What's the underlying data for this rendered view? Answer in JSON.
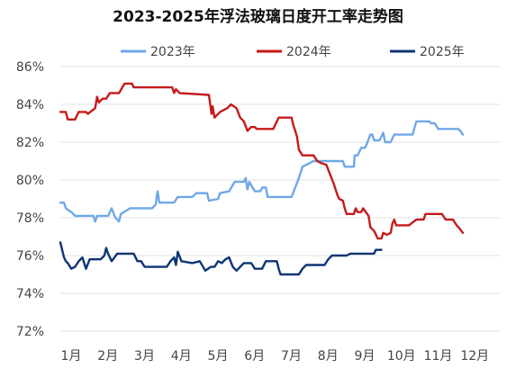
{
  "chart_data": {
    "type": "line",
    "title": "2023-2025年浮法玻璃日度开工率走势图",
    "xlabel": "",
    "ylabel": "",
    "x_ticks": [
      "1月",
      "2月",
      "3月",
      "4月",
      "5月",
      "6月",
      "7月",
      "8月",
      "9月",
      "10月",
      "11月",
      "12月"
    ],
    "x_range": [
      0,
      12
    ],
    "y_ticks": [
      "72%",
      "74%",
      "76%",
      "78%",
      "80%",
      "82%",
      "84%",
      "86%"
    ],
    "ylim": [
      72,
      86
    ],
    "grid": "horizontal",
    "legend_position": "top",
    "series": [
      {
        "name": "2023年",
        "color": "#6fa8e8",
        "points": [
          [
            0,
            78.8
          ],
          [
            0.1,
            78.8
          ],
          [
            0.15,
            78.5
          ],
          [
            0.3,
            78.3
          ],
          [
            0.4,
            78.1
          ],
          [
            0.9,
            78.1
          ],
          [
            0.95,
            77.8
          ],
          [
            1.0,
            78.1
          ],
          [
            1.3,
            78.1
          ],
          [
            1.4,
            78.5
          ],
          [
            1.5,
            78.0
          ],
          [
            1.6,
            77.8
          ],
          [
            1.65,
            78.2
          ],
          [
            1.9,
            78.5
          ],
          [
            2.5,
            78.5
          ],
          [
            2.6,
            78.7
          ],
          [
            2.65,
            79.4
          ],
          [
            2.7,
            78.8
          ],
          [
            3.1,
            78.8
          ],
          [
            3.2,
            79.1
          ],
          [
            3.6,
            79.1
          ],
          [
            3.7,
            79.3
          ],
          [
            4.0,
            79.3
          ],
          [
            4.05,
            78.9
          ],
          [
            4.3,
            79.0
          ],
          [
            4.35,
            79.3
          ],
          [
            4.6,
            79.4
          ],
          [
            4.75,
            79.9
          ],
          [
            5.0,
            79.9
          ],
          [
            5.05,
            80.1
          ],
          [
            5.1,
            79.5
          ],
          [
            5.15,
            79.9
          ],
          [
            5.3,
            79.4
          ],
          [
            5.45,
            79.4
          ],
          [
            5.5,
            79.6
          ],
          [
            5.6,
            79.6
          ],
          [
            5.65,
            79.1
          ],
          [
            6.3,
            79.1
          ],
          [
            6.4,
            79.6
          ],
          [
            6.5,
            80.1
          ],
          [
            6.6,
            80.7
          ],
          [
            6.9,
            81.0
          ],
          [
            7.7,
            81.0
          ],
          [
            7.75,
            80.7
          ],
          [
            8.0,
            80.7
          ],
          [
            8.02,
            81.3
          ],
          [
            8.1,
            81.3
          ],
          [
            8.2,
            81.7
          ],
          [
            8.3,
            81.7
          ],
          [
            8.35,
            81.9
          ],
          [
            8.45,
            82.4
          ],
          [
            8.5,
            82.4
          ],
          [
            8.55,
            82.1
          ],
          [
            8.7,
            82.1
          ],
          [
            8.8,
            82.5
          ],
          [
            8.85,
            82.0
          ],
          [
            9.0,
            82.0
          ],
          [
            9.1,
            82.4
          ],
          [
            9.6,
            82.4
          ],
          [
            9.7,
            83.1
          ],
          [
            10.05,
            83.1
          ],
          [
            10.1,
            83.0
          ],
          [
            10.2,
            83.0
          ],
          [
            10.3,
            82.7
          ],
          [
            10.85,
            82.7
          ],
          [
            10.9,
            82.6
          ],
          [
            10.97,
            82.4
          ]
        ]
      },
      {
        "name": "2024年",
        "color": "#c41a1a",
        "points": [
          [
            0,
            83.6
          ],
          [
            0.15,
            83.6
          ],
          [
            0.2,
            83.2
          ],
          [
            0.4,
            83.2
          ],
          [
            0.5,
            83.6
          ],
          [
            0.7,
            83.6
          ],
          [
            0.75,
            83.5
          ],
          [
            0.95,
            83.8
          ],
          [
            1.0,
            84.4
          ],
          [
            1.05,
            84.1
          ],
          [
            1.15,
            84.3
          ],
          [
            1.25,
            84.3
          ],
          [
            1.35,
            84.6
          ],
          [
            1.6,
            84.6
          ],
          [
            1.75,
            85.1
          ],
          [
            1.95,
            85.1
          ],
          [
            2.0,
            84.9
          ],
          [
            3.05,
            84.9
          ],
          [
            3.1,
            84.6
          ],
          [
            3.15,
            84.8
          ],
          [
            3.25,
            84.6
          ],
          [
            4.05,
            84.5
          ],
          [
            4.12,
            83.5
          ],
          [
            4.15,
            83.9
          ],
          [
            4.2,
            83.3
          ],
          [
            4.35,
            83.6
          ],
          [
            4.55,
            83.8
          ],
          [
            4.65,
            84.0
          ],
          [
            4.8,
            83.8
          ],
          [
            4.9,
            83.3
          ],
          [
            5.0,
            83.1
          ],
          [
            5.1,
            82.6
          ],
          [
            5.2,
            82.8
          ],
          [
            5.3,
            82.8
          ],
          [
            5.35,
            82.7
          ],
          [
            5.8,
            82.7
          ],
          [
            5.95,
            83.3
          ],
          [
            6.3,
            83.3
          ],
          [
            6.35,
            82.9
          ],
          [
            6.45,
            82.3
          ],
          [
            6.5,
            81.6
          ],
          [
            6.6,
            81.3
          ],
          [
            6.9,
            81.3
          ],
          [
            7.0,
            81.0
          ],
          [
            7.1,
            80.9
          ],
          [
            7.25,
            80.8
          ],
          [
            7.35,
            80.3
          ],
          [
            7.45,
            79.8
          ],
          [
            7.55,
            79.2
          ],
          [
            7.6,
            79.0
          ],
          [
            7.7,
            78.9
          ],
          [
            7.75,
            78.5
          ],
          [
            7.8,
            78.2
          ],
          [
            8.0,
            78.2
          ],
          [
            8.05,
            78.5
          ],
          [
            8.1,
            78.3
          ],
          [
            8.2,
            78.3
          ],
          [
            8.25,
            78.5
          ],
          [
            8.4,
            78.1
          ],
          [
            8.45,
            77.5
          ],
          [
            8.55,
            77.3
          ],
          [
            8.65,
            76.9
          ],
          [
            8.75,
            76.9
          ],
          [
            8.8,
            77.2
          ],
          [
            8.9,
            77.1
          ],
          [
            9.0,
            77.2
          ],
          [
            9.05,
            77.7
          ],
          [
            9.1,
            77.9
          ],
          [
            9.15,
            77.6
          ],
          [
            9.5,
            77.6
          ],
          [
            9.7,
            77.9
          ],
          [
            9.9,
            77.9
          ],
          [
            9.95,
            78.2
          ],
          [
            10.4,
            78.2
          ],
          [
            10.5,
            77.9
          ],
          [
            10.7,
            77.9
          ],
          [
            10.8,
            77.6
          ],
          [
            10.85,
            77.5
          ],
          [
            10.97,
            77.2
          ]
        ]
      },
      {
        "name": "2025年",
        "color": "#0c3574",
        "points": [
          [
            0,
            76.7
          ],
          [
            0.05,
            76.3
          ],
          [
            0.1,
            75.9
          ],
          [
            0.15,
            75.7
          ],
          [
            0.2,
            75.6
          ],
          [
            0.3,
            75.3
          ],
          [
            0.4,
            75.4
          ],
          [
            0.5,
            75.7
          ],
          [
            0.6,
            75.9
          ],
          [
            0.7,
            75.3
          ],
          [
            0.8,
            75.8
          ],
          [
            1.0,
            75.8
          ],
          [
            1.1,
            75.8
          ],
          [
            1.2,
            76.0
          ],
          [
            1.25,
            76.4
          ],
          [
            1.3,
            76.1
          ],
          [
            1.4,
            75.7
          ],
          [
            1.55,
            76.1
          ],
          [
            2.0,
            76.1
          ],
          [
            2.1,
            75.7
          ],
          [
            2.2,
            75.7
          ],
          [
            2.3,
            75.4
          ],
          [
            2.9,
            75.4
          ],
          [
            3.0,
            75.7
          ],
          [
            3.1,
            75.9
          ],
          [
            3.15,
            75.5
          ],
          [
            3.2,
            76.2
          ],
          [
            3.3,
            75.7
          ],
          [
            3.6,
            75.6
          ],
          [
            3.8,
            75.7
          ],
          [
            3.95,
            75.2
          ],
          [
            4.1,
            75.4
          ],
          [
            4.2,
            75.4
          ],
          [
            4.3,
            75.7
          ],
          [
            4.4,
            75.6
          ],
          [
            4.5,
            75.8
          ],
          [
            4.6,
            75.9
          ],
          [
            4.7,
            75.4
          ],
          [
            4.8,
            75.2
          ],
          [
            5.0,
            75.6
          ],
          [
            5.2,
            75.6
          ],
          [
            5.3,
            75.3
          ],
          [
            5.5,
            75.3
          ],
          [
            5.6,
            75.7
          ],
          [
            5.9,
            75.7
          ],
          [
            5.95,
            75.3
          ],
          [
            6.0,
            75.0
          ],
          [
            6.5,
            75.0
          ],
          [
            6.6,
            75.3
          ],
          [
            6.7,
            75.5
          ],
          [
            7.2,
            75.5
          ],
          [
            7.3,
            75.8
          ],
          [
            7.4,
            76.0
          ],
          [
            7.8,
            76.0
          ],
          [
            7.9,
            76.1
          ],
          [
            8.55,
            76.1
          ],
          [
            8.6,
            76.3
          ],
          [
            8.75,
            76.3
          ]
        ]
      }
    ]
  }
}
